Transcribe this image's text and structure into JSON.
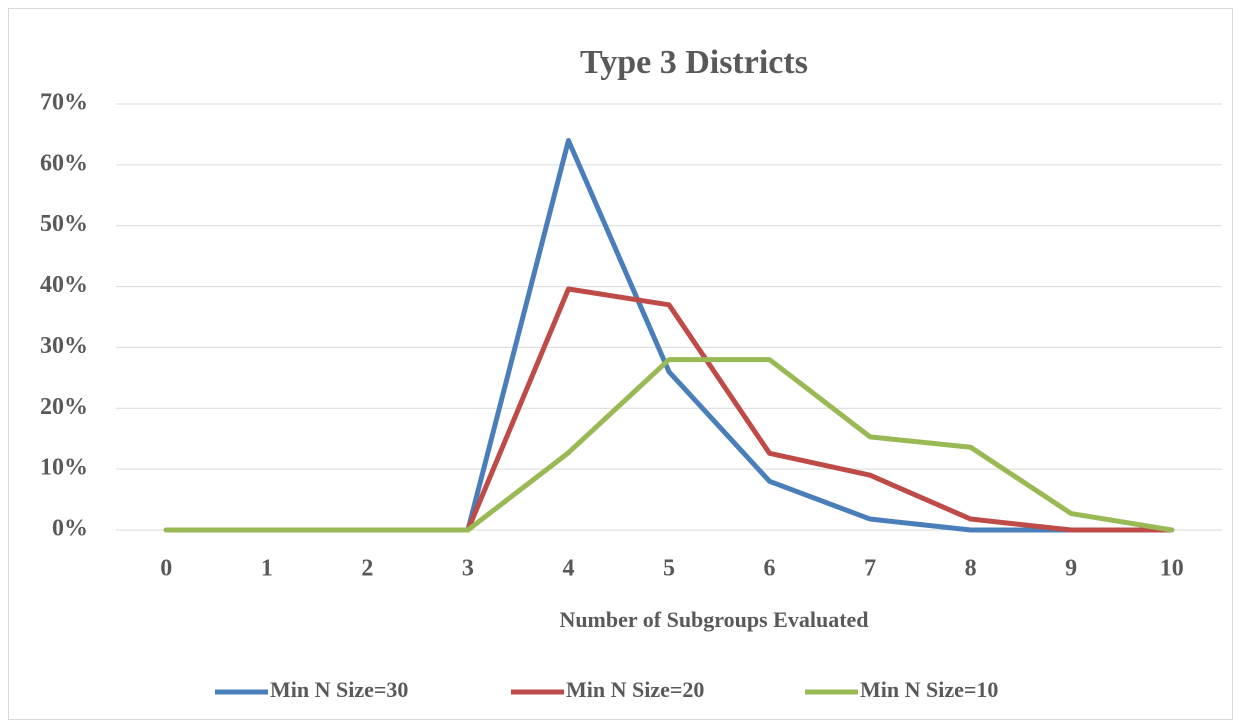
{
  "chart_data": {
    "type": "line",
    "title": "Type 3 Districts",
    "x_label": "Number of Subgroups Evaluated",
    "categories": [
      "0",
      "1",
      "2",
      "3",
      "4",
      "5",
      "6",
      "7",
      "8",
      "9",
      "10"
    ],
    "series": [
      {
        "name": "Min N Size=30",
        "color": "#4a7ebb",
        "values": [
          0,
          0,
          0,
          0,
          64,
          26,
          8,
          1.8,
          0,
          0,
          0
        ]
      },
      {
        "name": "Min N Size=20",
        "color": "#be4b48",
        "values": [
          0,
          0,
          0,
          0,
          39.6,
          37,
          12.6,
          9,
          1.8,
          0,
          0
        ]
      },
      {
        "name": "Min N Size=10",
        "color": "#98b954",
        "values": [
          0,
          0,
          0,
          0,
          12.7,
          28,
          28,
          15.3,
          13.6,
          2.7,
          0
        ]
      }
    ],
    "ylim": [
      0,
      70
    ],
    "yticks": [
      {
        "value": 0,
        "label": "0%"
      },
      {
        "value": 10,
        "label": "10%"
      },
      {
        "value": 20,
        "label": "20%"
      },
      {
        "value": 30,
        "label": "30%"
      },
      {
        "value": 40,
        "label": "40%"
      },
      {
        "value": 50,
        "label": "50%"
      },
      {
        "value": 60,
        "label": "60%"
      },
      {
        "value": 70,
        "label": "70%"
      }
    ],
    "grid": true,
    "legend": "bottom"
  }
}
